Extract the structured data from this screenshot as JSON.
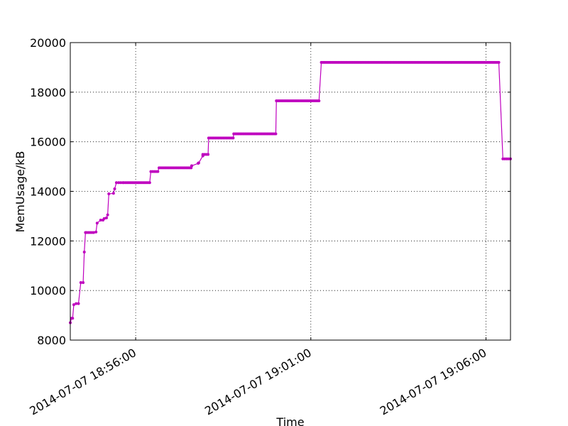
{
  "chart_data": {
    "type": "line",
    "xlabel": "Time",
    "ylabel": "MemUsage/kB",
    "xlim": [
      "2014-07-07 18:54:08",
      "2014-07-07 19:06:42"
    ],
    "ylim": [
      8000,
      20000
    ],
    "yticks": [
      8000,
      10000,
      12000,
      14000,
      16000,
      18000,
      20000
    ],
    "xticks": [
      {
        "value": "2014-07-07 18:56:00",
        "label": "2014-07-07 18:56:00"
      },
      {
        "value": "2014-07-07 19:01:00",
        "label": "2014-07-07 19:01:00"
      },
      {
        "value": "2014-07-07 19:06:00",
        "label": "2014-07-07 19:06:00"
      }
    ],
    "grid": true,
    "line_color": "#bf00bf",
    "series": [
      {
        "x": [
          "2014-07-07 18:54:08",
          "2014-07-07 18:54:10",
          "2014-07-07 18:54:12",
          "2014-07-07 18:54:14",
          "2014-07-07 18:54:18",
          "2014-07-07 18:54:22",
          "2014-07-07 18:54:26",
          "2014-07-07 18:54:30",
          "2014-07-07 18:54:32",
          "2014-07-07 18:54:34",
          "2014-07-07 18:54:36",
          "2014-07-07 18:54:48",
          "2014-07-07 18:54:52",
          "2014-07-07 18:54:54",
          "2014-07-07 18:55:00",
          "2014-07-07 18:55:04",
          "2014-07-07 18:55:06",
          "2014-07-07 18:55:10",
          "2014-07-07 18:55:12",
          "2014-07-07 18:55:14",
          "2014-07-07 18:55:22",
          "2014-07-07 18:55:24",
          "2014-07-07 18:55:27",
          "2014-07-07 18:55:31",
          "2014-07-07 18:55:38",
          "2014-07-07 18:55:40",
          "2014-07-07 18:55:43",
          "2014-07-07 18:56:24",
          "2014-07-07 18:56:26",
          "2014-07-07 18:56:38",
          "2014-07-07 18:56:40",
          "2014-07-07 18:57:35",
          "2014-07-07 18:57:36",
          "2014-07-07 18:57:36",
          "2014-07-07 18:57:47",
          "2014-07-07 18:57:48",
          "2014-07-07 18:57:55",
          "2014-07-07 18:57:55",
          "2014-07-07 18:57:58",
          "2014-07-07 18:58:04",
          "2014-07-07 18:58:05",
          "2014-07-07 18:58:47",
          "2014-07-07 18:58:48",
          "2014-07-07 19:00:00",
          "2014-07-07 19:00:01",
          "2014-07-07 19:01:14",
          "2014-07-07 19:01:18",
          "2014-07-07 19:06:22",
          "2014-07-07 19:06:29",
          "2014-07-07 19:06:42"
        ],
        "y": [
          8700,
          8880,
          8880,
          9430,
          9470,
          9470,
          10320,
          10320,
          11550,
          12340,
          12340,
          12340,
          12360,
          12720,
          12840,
          12840,
          12900,
          12930,
          13050,
          13900,
          13920,
          14100,
          14350,
          14350,
          14350,
          14350,
          14350,
          14350,
          14800,
          14800,
          14950,
          14950,
          15030,
          15030,
          15130,
          15150,
          15430,
          15490,
          15490,
          15490,
          16150,
          16150,
          16320,
          16320,
          17650,
          17650,
          19200,
          19200,
          15310,
          15310
        ]
      }
    ]
  }
}
